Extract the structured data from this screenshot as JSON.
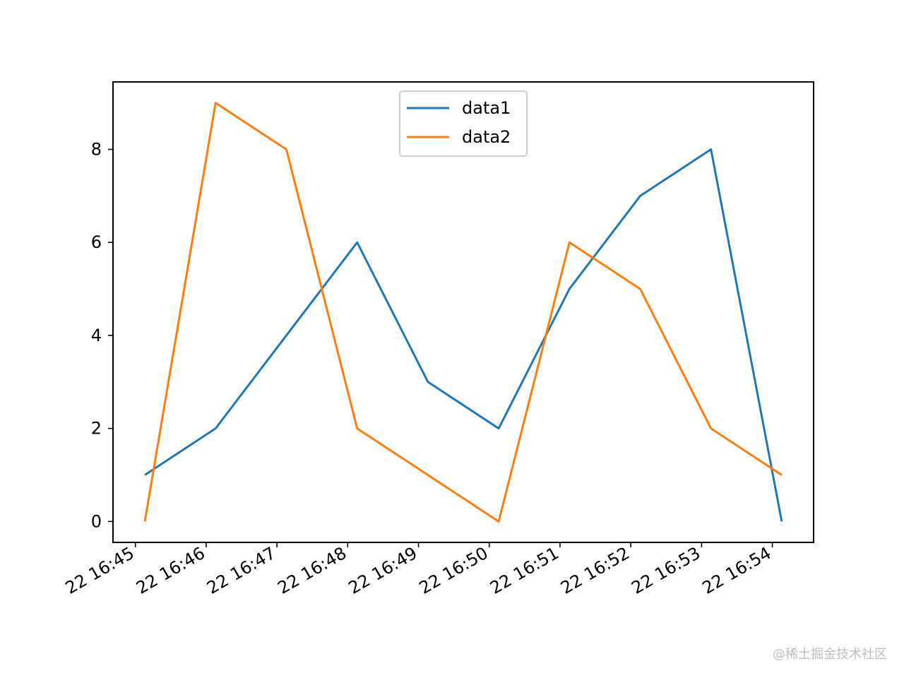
{
  "chart_data": {
    "type": "line",
    "x": [
      "22 16:45:08",
      "22 16:46:08",
      "22 16:47:08",
      "22 16:48:08",
      "22 16:49:08",
      "22 16:50:08",
      "22 16:51:08",
      "22 16:52:08",
      "22 16:53:08",
      "22 16:54:08"
    ],
    "series": [
      {
        "name": "data1",
        "color": "#1f77b4",
        "values": [
          1,
          2,
          4,
          6,
          3,
          2,
          5,
          7,
          8,
          0
        ]
      },
      {
        "name": "data2",
        "color": "#ff7f0e",
        "values": [
          0,
          9,
          8,
          2,
          1,
          0,
          6,
          5,
          2,
          1
        ]
      }
    ],
    "x_ticks": [
      "22 16:45",
      "22 16:46",
      "22 16:47",
      "22 16:48",
      "22 16:49",
      "22 16:50",
      "22 16:51",
      "22 16:52",
      "22 16:53",
      "22 16:54"
    ],
    "y_ticks": [
      0,
      2,
      4,
      6,
      8
    ],
    "ylim": [
      -0.45,
      9.45
    ],
    "legend": "upper-center",
    "grid": false,
    "title": "",
    "xlabel": "",
    "ylabel": ""
  },
  "watermark": "@稀土掘金技术社区"
}
